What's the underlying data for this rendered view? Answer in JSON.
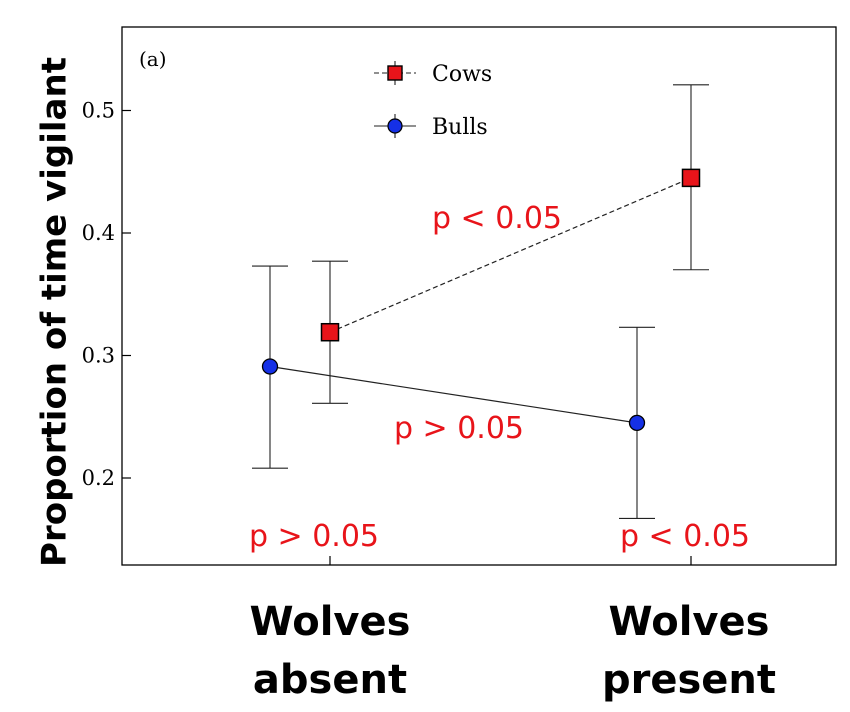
{
  "chart_data": {
    "type": "line",
    "panel_label": "(a)",
    "ylabel": "Proportion of time vigilant",
    "ylim": [
      0.12,
      0.55
    ],
    "yticks": [
      "0.2",
      "0.3",
      "0.4",
      "0.5"
    ],
    "categories": [
      "Wolves absent",
      "Wolves present"
    ],
    "category_lines": [
      [
        "Wolves",
        "absent"
      ],
      [
        "Wolves",
        "present"
      ]
    ],
    "series": [
      {
        "name": "Cows",
        "marker": "square",
        "color": "#e8141a",
        "line_style": "dashed",
        "values": [
          0.319,
          0.445
        ],
        "err_low": [
          0.261,
          0.37
        ],
        "err_high": [
          0.377,
          0.521
        ]
      },
      {
        "name": "Bulls",
        "marker": "circle",
        "color": "#1530e6",
        "line_style": "solid",
        "values": [
          0.291,
          0.245
        ],
        "err_low": [
          0.208,
          0.167
        ],
        "err_high": [
          0.373,
          0.323
        ]
      }
    ],
    "annotations": [
      {
        "text": "p < 0.05",
        "color": "#e8141a",
        "position": "between cows points"
      },
      {
        "text": "p > 0.05",
        "color": "#e8141a",
        "position": "between bulls points"
      },
      {
        "text": "p > 0.05",
        "color": "#e8141a",
        "position": "bottom, wolves absent"
      },
      {
        "text": "p < 0.05",
        "color": "#e8141a",
        "position": "bottom, wolves present"
      }
    ],
    "legend": "top-center",
    "grid": false
  }
}
